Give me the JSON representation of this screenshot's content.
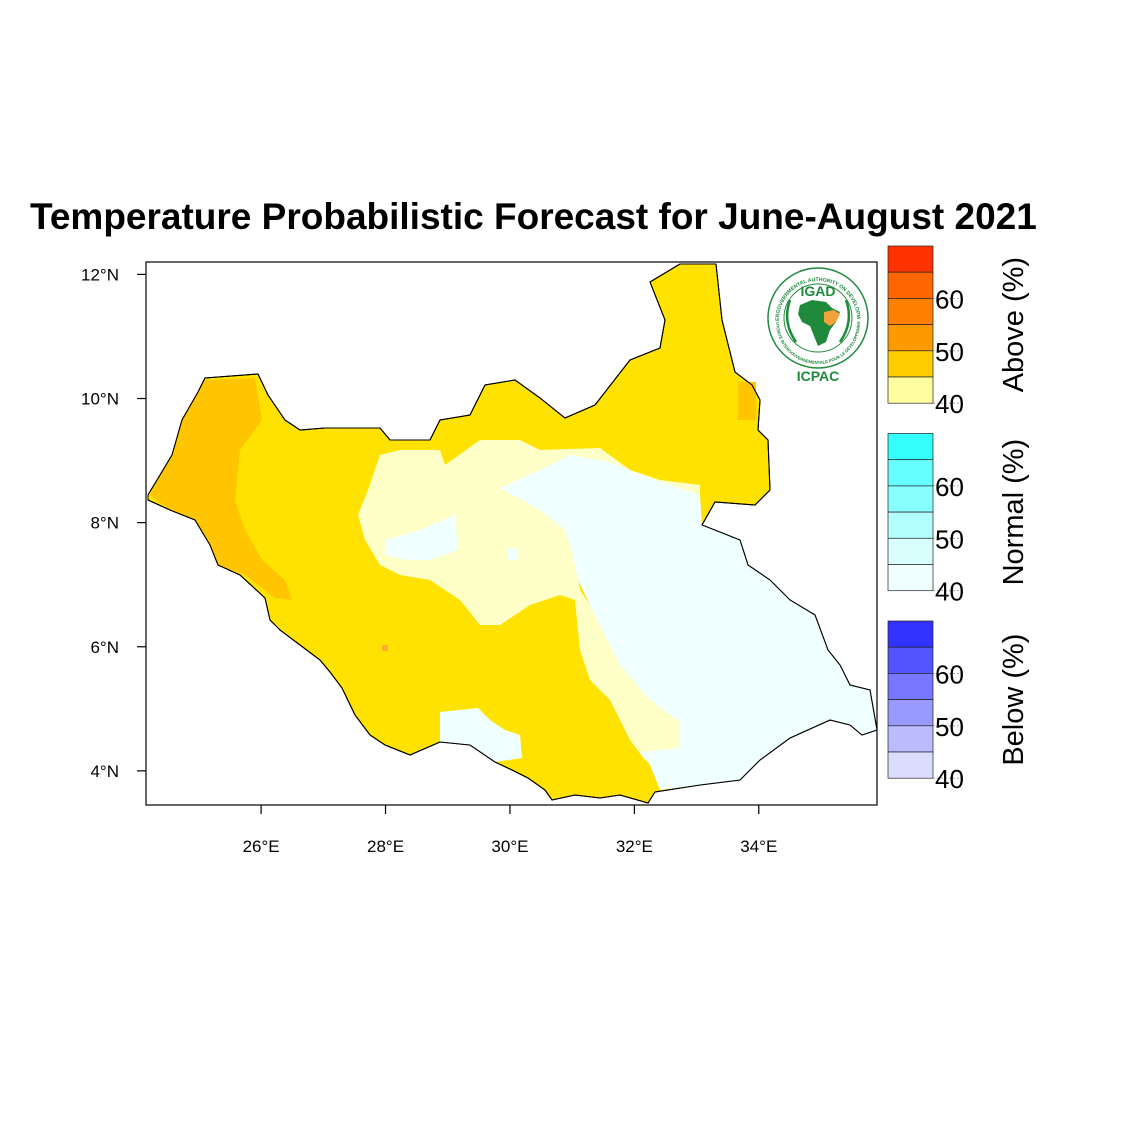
{
  "title": "Temperature Probabilistic Forecast for June-August 2021",
  "axes": {
    "lat_ticks": [
      {
        "label": "12°N",
        "value": 12
      },
      {
        "label": "10°N",
        "value": 10
      },
      {
        "label": "8°N",
        "value": 8
      },
      {
        "label": "6°N",
        "value": 6
      },
      {
        "label": "4°N",
        "value": 4
      }
    ],
    "lon_ticks": [
      {
        "label": "26°E",
        "value": 26
      },
      {
        "label": "28°E",
        "value": 28
      },
      {
        "label": "30°E",
        "value": 30
      },
      {
        "label": "32°E",
        "value": 32
      },
      {
        "label": "34°E",
        "value": 34
      }
    ],
    "lon_range": [
      24.15,
      35.9
    ],
    "lat_range": [
      3.45,
      12.2
    ]
  },
  "legend": {
    "groups": [
      {
        "name": "Above (%)",
        "colors": [
          "#ff3300",
          "#ff6600",
          "#ff7f00",
          "#ff9900",
          "#ffcc00",
          "#ffff9f"
        ],
        "labels": [
          "60",
          "50",
          "40"
        ]
      },
      {
        "name": "Normal (%)",
        "colors": [
          "#33ffff",
          "#66ffff",
          "#88ffff",
          "#b3ffff",
          "#d9ffff",
          "#f0ffff"
        ],
        "labels": [
          "60",
          "50",
          "40"
        ]
      },
      {
        "name": "Below (%)",
        "colors": [
          "#3333ff",
          "#5555ff",
          "#7777ff",
          "#9999ff",
          "#bbbbff",
          "#dcdcff"
        ],
        "labels": [
          "60",
          "50",
          "40"
        ]
      }
    ]
  },
  "logo": {
    "org_short": "IGAD",
    "center_name": "ICPAC",
    "ring_text_top": "INTERGOVERNMENTAL AUTHORITY ON DEVELOPMENT",
    "ring_text_bottom": "AUTORITÉ INTERGOUVERNEMENTALE POUR LE DÉVELOPPEMENT"
  },
  "palette": {
    "above_40": "#ffe200",
    "above_45": "#ffc500",
    "above_50": "#ffad33",
    "below_40_light": "#ffffc8",
    "normal_40": "#f0ffff",
    "logo_green": "#1f8a3c"
  }
}
